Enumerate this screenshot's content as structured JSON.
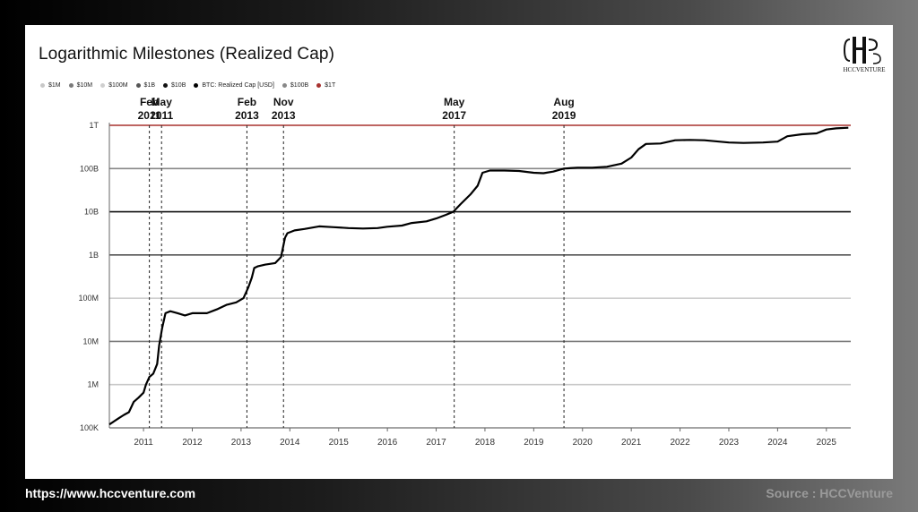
{
  "title": "Logarithmic Milestones (Realized Cap)",
  "logo_text": "HCCVENTURE",
  "footer": {
    "url": "https://www.hccventure.com",
    "source": "Source : HCCVenture"
  },
  "legend": [
    {
      "label": "$1M",
      "color": "#c8c8c8"
    },
    {
      "label": "$10M",
      "color": "#7a7a7a"
    },
    {
      "label": "$100M",
      "color": "#cfcfcf"
    },
    {
      "label": "$1B",
      "color": "#555555"
    },
    {
      "label": "$10B",
      "color": "#111111"
    },
    {
      "label": "BTC: Realized Cap [USD]",
      "color": "#000000"
    },
    {
      "label": "$100B",
      "color": "#888888"
    },
    {
      "label": "$1T",
      "color": "#a8322f"
    }
  ],
  "chart_data": {
    "type": "line",
    "title": "Logarithmic Milestones (Realized Cap)",
    "yscale": "log",
    "ylim": [
      100000,
      1000000000000
    ],
    "xlim": [
      2010.3,
      2025.5
    ],
    "yticks": [
      {
        "value": 100000,
        "label": "100K",
        "color": "#c8c8c8"
      },
      {
        "value": 1000000,
        "label": "1M",
        "color": "#c8c8c8"
      },
      {
        "value": 10000000,
        "label": "10M",
        "color": "#7a7a7a"
      },
      {
        "value": 100000000,
        "label": "100M",
        "color": "#cfcfcf"
      },
      {
        "value": 1000000000,
        "label": "1B",
        "color": "#555555"
      },
      {
        "value": 10000000000,
        "label": "10B",
        "color": "#111111"
      },
      {
        "value": 100000000000,
        "label": "100B",
        "color": "#888888"
      },
      {
        "value": 1000000000000,
        "label": "1T",
        "color": "#a8322f"
      }
    ],
    "xticks": [
      "2011",
      "2012",
      "2013",
      "2014",
      "2015",
      "2016",
      "2017",
      "2018",
      "2019",
      "2020",
      "2021",
      "2022",
      "2023",
      "2024",
      "2025"
    ],
    "milestones": [
      {
        "x": 2011.12,
        "month": "Feb",
        "year": "2011"
      },
      {
        "x": 2011.37,
        "month": "May",
        "year": "2011"
      },
      {
        "x": 2013.12,
        "month": "Feb",
        "year": "2013"
      },
      {
        "x": 2013.87,
        "month": "Nov",
        "year": "2013"
      },
      {
        "x": 2017.37,
        "month": "May",
        "year": "2017"
      },
      {
        "x": 2019.62,
        "month": "Aug",
        "year": "2019"
      }
    ],
    "series": [
      {
        "name": "BTC: Realized Cap [USD]",
        "points": [
          [
            2010.3,
            120000
          ],
          [
            2010.5,
            170000
          ],
          [
            2010.6,
            200000
          ],
          [
            2010.7,
            230000
          ],
          [
            2010.8,
            400000
          ],
          [
            2010.9,
            500000
          ],
          [
            2011.0,
            650000
          ],
          [
            2011.05,
            1000000
          ],
          [
            2011.12,
            1500000
          ],
          [
            2011.2,
            1800000
          ],
          [
            2011.28,
            3000000
          ],
          [
            2011.32,
            8000000
          ],
          [
            2011.38,
            20000000
          ],
          [
            2011.45,
            45000000
          ],
          [
            2011.55,
            50000000
          ],
          [
            2011.7,
            45000000
          ],
          [
            2011.85,
            40000000
          ],
          [
            2012.0,
            45000000
          ],
          [
            2012.3,
            45000000
          ],
          [
            2012.5,
            55000000
          ],
          [
            2012.7,
            70000000
          ],
          [
            2012.9,
            80000000
          ],
          [
            2013.05,
            100000000
          ],
          [
            2013.15,
            180000000
          ],
          [
            2013.22,
            300000000
          ],
          [
            2013.27,
            500000000
          ],
          [
            2013.35,
            550000000
          ],
          [
            2013.5,
            600000000
          ],
          [
            2013.7,
            650000000
          ],
          [
            2013.82,
            900000000
          ],
          [
            2013.9,
            2500000000
          ],
          [
            2013.95,
            3200000000
          ],
          [
            2014.1,
            3700000000
          ],
          [
            2014.3,
            4000000000
          ],
          [
            2014.6,
            4600000000
          ],
          [
            2014.9,
            4400000000
          ],
          [
            2015.2,
            4200000000
          ],
          [
            2015.5,
            4100000000
          ],
          [
            2015.8,
            4200000000
          ],
          [
            2016.0,
            4500000000
          ],
          [
            2016.3,
            4800000000
          ],
          [
            2016.5,
            5500000000
          ],
          [
            2016.8,
            6000000000
          ],
          [
            2017.0,
            7000000000
          ],
          [
            2017.2,
            8500000000
          ],
          [
            2017.35,
            10000000000
          ],
          [
            2017.5,
            15000000000
          ],
          [
            2017.7,
            25000000000
          ],
          [
            2017.85,
            40000000000
          ],
          [
            2017.95,
            80000000000
          ],
          [
            2018.1,
            90000000000
          ],
          [
            2018.4,
            90000000000
          ],
          [
            2018.7,
            88000000000
          ],
          [
            2019.0,
            80000000000
          ],
          [
            2019.2,
            78000000000
          ],
          [
            2019.4,
            85000000000
          ],
          [
            2019.62,
            100000000000
          ],
          [
            2019.9,
            105000000000
          ],
          [
            2020.2,
            105000000000
          ],
          [
            2020.5,
            110000000000
          ],
          [
            2020.8,
            130000000000
          ],
          [
            2021.0,
            180000000000
          ],
          [
            2021.15,
            280000000000
          ],
          [
            2021.3,
            370000000000
          ],
          [
            2021.6,
            380000000000
          ],
          [
            2021.9,
            450000000000
          ],
          [
            2022.2,
            460000000000
          ],
          [
            2022.5,
            450000000000
          ],
          [
            2022.8,
            420000000000
          ],
          [
            2023.0,
            400000000000
          ],
          [
            2023.3,
            390000000000
          ],
          [
            2023.7,
            400000000000
          ],
          [
            2024.0,
            420000000000
          ],
          [
            2024.2,
            560000000000
          ],
          [
            2024.5,
            620000000000
          ],
          [
            2024.8,
            650000000000
          ],
          [
            2025.0,
            800000000000
          ],
          [
            2025.2,
            850000000000
          ],
          [
            2025.45,
            880000000000
          ]
        ]
      }
    ]
  }
}
